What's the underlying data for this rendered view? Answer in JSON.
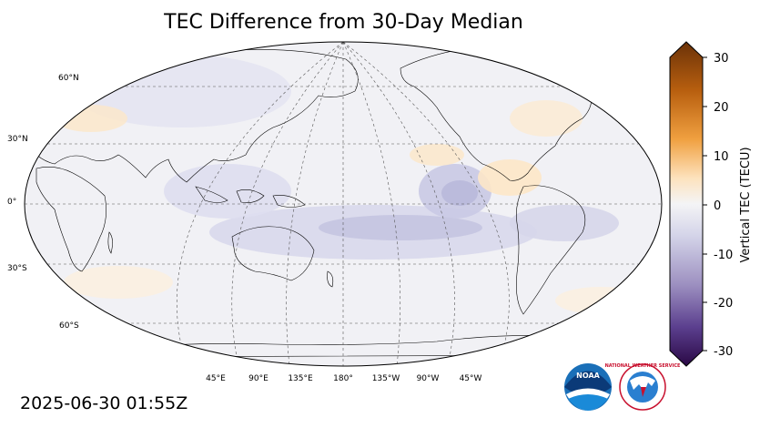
{
  "title": "TEC Difference from 30-Day Median",
  "timestamp": "2025-06-30 01:55Z",
  "colorbar": {
    "label": "Vertical TEC (TECU)",
    "ticks": [
      "30",
      "20",
      "10",
      "0",
      "-10",
      "-20",
      "-30"
    ],
    "colors": {
      "high": "#7a3a08",
      "mid_high": "#e08a2a",
      "light_high": "#fde0b8",
      "neutral": "#f2f2f4",
      "light_low": "#cfcfe6",
      "mid_low": "#7d6aa8",
      "low": "#2e0a4a"
    }
  },
  "map": {
    "lat_labels": [
      "60°N",
      "30°N",
      "0°",
      "30°S",
      "60°S"
    ],
    "lon_labels": [
      "45°E",
      "90°E",
      "135°E",
      "180°",
      "135°W",
      "90°W",
      "45°W"
    ]
  },
  "logos": {
    "noaa_text": "NOAA",
    "nws_text": "NATIONAL WEATHER SERVICE"
  }
}
